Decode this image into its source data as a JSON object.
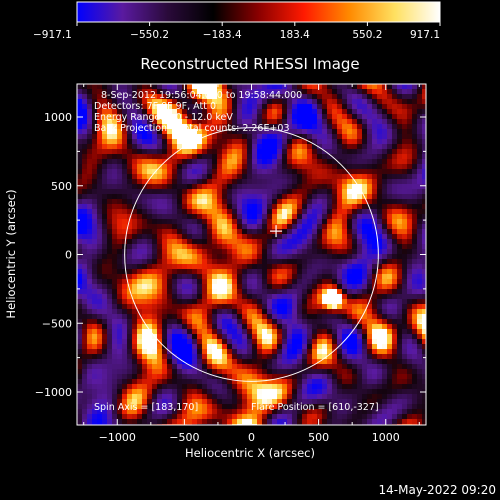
{
  "colorbar": {
    "ticks": [
      "-917.1",
      "-550.2",
      "-183.4",
      "183.4",
      "550.2",
      "917.1"
    ],
    "colors": [
      "#0000ff",
      "#5a1aa0",
      "#2a0a3a",
      "#000000",
      "#8a0000",
      "#ff1a00",
      "#ff8a00",
      "#ffe060",
      "#ffffff"
    ]
  },
  "chart_data": {
    "type": "heatmap",
    "title": "Reconstructed RHESSI Image",
    "xlabel": "Heliocentric X (arcsec)",
    "ylabel": "Heliocentric Y (arcsec)",
    "xlim": [
      -1300,
      1300
    ],
    "ylim": [
      -1240,
      1240
    ],
    "xticks": [
      -1000,
      -500,
      0,
      500,
      1000
    ],
    "yticks": [
      -1000,
      -500,
      0,
      500,
      1000
    ],
    "x_tick_labels": [
      "−1000",
      "−500",
      "0",
      "500",
      "1000"
    ],
    "y_tick_labels": [
      "−1000",
      "−500",
      "0",
      "500",
      "1000"
    ],
    "value_range": [
      -917.1,
      917.1
    ],
    "limb_radius": 945,
    "marker": {
      "x": 183,
      "y": 170
    },
    "bright_source": {
      "x": 610,
      "y": -327
    },
    "info_lines": [
      "8-Sep-2012 19:56:04.000 to 19:58:44.000",
      "Detectors: 7F 8F 9F, Att 0",
      "Energy Range: 6.0 - 12.0 keV",
      "Back Projection    Total counts: 2.26E+03"
    ],
    "spin_axis": "Spin Axis = [183,170]",
    "flare_position": "Flare Position = [610,-327]"
  },
  "footer": {
    "timestamp": "14-May-2022 09:20"
  }
}
